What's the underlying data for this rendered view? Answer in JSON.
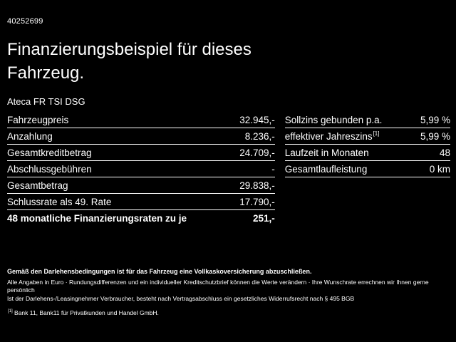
{
  "vehicle_id": "40252699",
  "title": "Finanzierungsbeispiel für dieses Fahrzeug.",
  "model": "Ateca FR TSI DSG",
  "left_table": {
    "rows": [
      {
        "label": "Fahrzeugpreis",
        "value": "32.945,-"
      },
      {
        "label": "Anzahlung",
        "value": "8.236,-"
      },
      {
        "label": "Gesamtkreditbetrag",
        "value": "24.709,-"
      },
      {
        "label": "Abschlussgebühren",
        "value": "-"
      },
      {
        "label": "Gesamtbetrag",
        "value": "29.838,-"
      },
      {
        "label": "Schlussrate als 49. Rate",
        "value": "17.790,-"
      },
      {
        "label": "48 monatliche Finanzierungsraten zu je",
        "value": "251,-"
      }
    ]
  },
  "right_table": {
    "rows": [
      {
        "label": "Sollzins gebunden p.a.",
        "value": "5,99 %"
      },
      {
        "label": "effektiver Jahreszins",
        "sup": "[1]",
        "value": "5,99 %"
      },
      {
        "label": "Laufzeit in Monaten",
        "value": "48"
      },
      {
        "label": "Gesamtlaufleistung",
        "value": "0 km"
      }
    ]
  },
  "footer": {
    "insurance_note": "Gemäß den Darlehensbedingungen ist für das Fahrzeug eine Vollkaskoversicherung abzuschließen.",
    "disclaimer": "Alle Angaben in Euro · Rundungsdifferenzen und ein individueller Kreditschutzbrief können die Werte verändern · Ihre Wunschrate errechnen wir Ihnen gerne persönlich",
    "withdrawal_note": "Ist der Darlehens-/Leasingnehmer Verbraucher, besteht nach Vertragsabschluss ein gesetzliches Widerrufsrecht nach § 495 BGB",
    "footnote_sup": "[1]",
    "footnote_text": " Bank 11, Bank11 für Privatkunden und Handel GmbH."
  }
}
